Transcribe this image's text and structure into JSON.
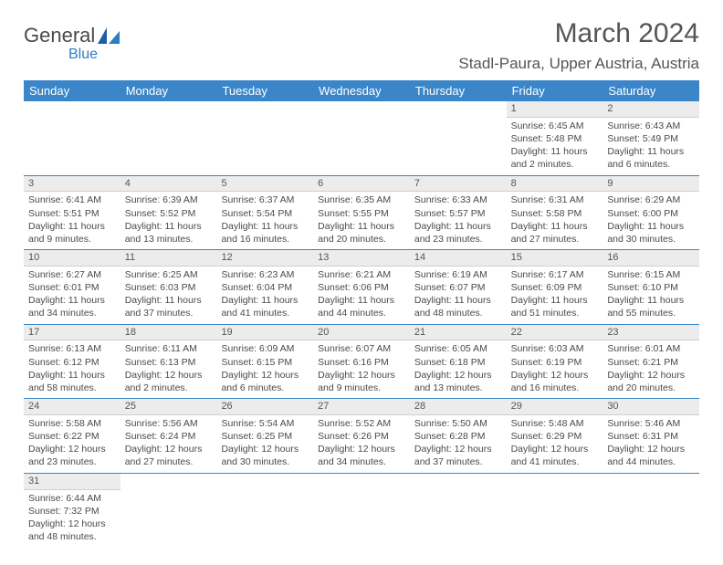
{
  "logo": {
    "name": "General",
    "sub": "Blue"
  },
  "title": "March 2024",
  "location": "Stadl-Paura, Upper Austria, Austria",
  "colors": {
    "header_bg": "#3a86c8",
    "header_text": "#ffffff",
    "daynum_bg": "#ececec",
    "row_border": "#3a86c8",
    "text": "#4a4a4a"
  },
  "weekdays": [
    "Sunday",
    "Monday",
    "Tuesday",
    "Wednesday",
    "Thursday",
    "Friday",
    "Saturday"
  ],
  "weeks": [
    [
      null,
      null,
      null,
      null,
      null,
      {
        "n": "1",
        "sr": "Sunrise: 6:45 AM",
        "ss": "Sunset: 5:48 PM",
        "dl": "Daylight: 11 hours and 2 minutes."
      },
      {
        "n": "2",
        "sr": "Sunrise: 6:43 AM",
        "ss": "Sunset: 5:49 PM",
        "dl": "Daylight: 11 hours and 6 minutes."
      }
    ],
    [
      {
        "n": "3",
        "sr": "Sunrise: 6:41 AM",
        "ss": "Sunset: 5:51 PM",
        "dl": "Daylight: 11 hours and 9 minutes."
      },
      {
        "n": "4",
        "sr": "Sunrise: 6:39 AM",
        "ss": "Sunset: 5:52 PM",
        "dl": "Daylight: 11 hours and 13 minutes."
      },
      {
        "n": "5",
        "sr": "Sunrise: 6:37 AM",
        "ss": "Sunset: 5:54 PM",
        "dl": "Daylight: 11 hours and 16 minutes."
      },
      {
        "n": "6",
        "sr": "Sunrise: 6:35 AM",
        "ss": "Sunset: 5:55 PM",
        "dl": "Daylight: 11 hours and 20 minutes."
      },
      {
        "n": "7",
        "sr": "Sunrise: 6:33 AM",
        "ss": "Sunset: 5:57 PM",
        "dl": "Daylight: 11 hours and 23 minutes."
      },
      {
        "n": "8",
        "sr": "Sunrise: 6:31 AM",
        "ss": "Sunset: 5:58 PM",
        "dl": "Daylight: 11 hours and 27 minutes."
      },
      {
        "n": "9",
        "sr": "Sunrise: 6:29 AM",
        "ss": "Sunset: 6:00 PM",
        "dl": "Daylight: 11 hours and 30 minutes."
      }
    ],
    [
      {
        "n": "10",
        "sr": "Sunrise: 6:27 AM",
        "ss": "Sunset: 6:01 PM",
        "dl": "Daylight: 11 hours and 34 minutes."
      },
      {
        "n": "11",
        "sr": "Sunrise: 6:25 AM",
        "ss": "Sunset: 6:03 PM",
        "dl": "Daylight: 11 hours and 37 minutes."
      },
      {
        "n": "12",
        "sr": "Sunrise: 6:23 AM",
        "ss": "Sunset: 6:04 PM",
        "dl": "Daylight: 11 hours and 41 minutes."
      },
      {
        "n": "13",
        "sr": "Sunrise: 6:21 AM",
        "ss": "Sunset: 6:06 PM",
        "dl": "Daylight: 11 hours and 44 minutes."
      },
      {
        "n": "14",
        "sr": "Sunrise: 6:19 AM",
        "ss": "Sunset: 6:07 PM",
        "dl": "Daylight: 11 hours and 48 minutes."
      },
      {
        "n": "15",
        "sr": "Sunrise: 6:17 AM",
        "ss": "Sunset: 6:09 PM",
        "dl": "Daylight: 11 hours and 51 minutes."
      },
      {
        "n": "16",
        "sr": "Sunrise: 6:15 AM",
        "ss": "Sunset: 6:10 PM",
        "dl": "Daylight: 11 hours and 55 minutes."
      }
    ],
    [
      {
        "n": "17",
        "sr": "Sunrise: 6:13 AM",
        "ss": "Sunset: 6:12 PM",
        "dl": "Daylight: 11 hours and 58 minutes."
      },
      {
        "n": "18",
        "sr": "Sunrise: 6:11 AM",
        "ss": "Sunset: 6:13 PM",
        "dl": "Daylight: 12 hours and 2 minutes."
      },
      {
        "n": "19",
        "sr": "Sunrise: 6:09 AM",
        "ss": "Sunset: 6:15 PM",
        "dl": "Daylight: 12 hours and 6 minutes."
      },
      {
        "n": "20",
        "sr": "Sunrise: 6:07 AM",
        "ss": "Sunset: 6:16 PM",
        "dl": "Daylight: 12 hours and 9 minutes."
      },
      {
        "n": "21",
        "sr": "Sunrise: 6:05 AM",
        "ss": "Sunset: 6:18 PM",
        "dl": "Daylight: 12 hours and 13 minutes."
      },
      {
        "n": "22",
        "sr": "Sunrise: 6:03 AM",
        "ss": "Sunset: 6:19 PM",
        "dl": "Daylight: 12 hours and 16 minutes."
      },
      {
        "n": "23",
        "sr": "Sunrise: 6:01 AM",
        "ss": "Sunset: 6:21 PM",
        "dl": "Daylight: 12 hours and 20 minutes."
      }
    ],
    [
      {
        "n": "24",
        "sr": "Sunrise: 5:58 AM",
        "ss": "Sunset: 6:22 PM",
        "dl": "Daylight: 12 hours and 23 minutes."
      },
      {
        "n": "25",
        "sr": "Sunrise: 5:56 AM",
        "ss": "Sunset: 6:24 PM",
        "dl": "Daylight: 12 hours and 27 minutes."
      },
      {
        "n": "26",
        "sr": "Sunrise: 5:54 AM",
        "ss": "Sunset: 6:25 PM",
        "dl": "Daylight: 12 hours and 30 minutes."
      },
      {
        "n": "27",
        "sr": "Sunrise: 5:52 AM",
        "ss": "Sunset: 6:26 PM",
        "dl": "Daylight: 12 hours and 34 minutes."
      },
      {
        "n": "28",
        "sr": "Sunrise: 5:50 AM",
        "ss": "Sunset: 6:28 PM",
        "dl": "Daylight: 12 hours and 37 minutes."
      },
      {
        "n": "29",
        "sr": "Sunrise: 5:48 AM",
        "ss": "Sunset: 6:29 PM",
        "dl": "Daylight: 12 hours and 41 minutes."
      },
      {
        "n": "30",
        "sr": "Sunrise: 5:46 AM",
        "ss": "Sunset: 6:31 PM",
        "dl": "Daylight: 12 hours and 44 minutes."
      }
    ],
    [
      {
        "n": "31",
        "sr": "Sunrise: 6:44 AM",
        "ss": "Sunset: 7:32 PM",
        "dl": "Daylight: 12 hours and 48 minutes."
      },
      null,
      null,
      null,
      null,
      null,
      null
    ]
  ]
}
